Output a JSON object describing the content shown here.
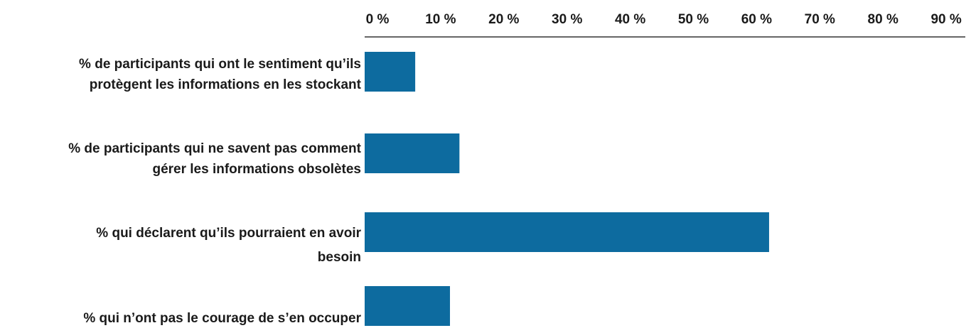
{
  "chart_data": {
    "type": "bar",
    "orientation": "horizontal",
    "title": "",
    "xlabel": "",
    "ylabel": "",
    "xlim": [
      0,
      90
    ],
    "x_ticks": [
      "0 %",
      "10 %",
      "20 %",
      "30 %",
      "40 %",
      "50 %",
      "60 %",
      "70 %",
      "80 %",
      "90 %"
    ],
    "x_tick_values": [
      0,
      10,
      20,
      30,
      40,
      50,
      60,
      70,
      80,
      90
    ],
    "axis_position": "top",
    "grid": false,
    "legend": "none",
    "bar_color": "#0d6b9f",
    "categories": [
      {
        "label_lines": [
          "% de participants qui ont le sentiment qu’ils",
          "protègent les informations en les stockant"
        ],
        "value": 8
      },
      {
        "label_lines": [
          "% de participants qui ne savent pas comment",
          "gérer les informations obsolètes"
        ],
        "value": 15
      },
      {
        "label_lines": [
          "% qui déclarent qu’ils pourraient en avoir",
          "besoin"
        ],
        "value": 64
      },
      {
        "label_lines": [
          "% qui n’ont pas le courage de s’en occuper"
        ],
        "value": 13.5
      }
    ]
  }
}
